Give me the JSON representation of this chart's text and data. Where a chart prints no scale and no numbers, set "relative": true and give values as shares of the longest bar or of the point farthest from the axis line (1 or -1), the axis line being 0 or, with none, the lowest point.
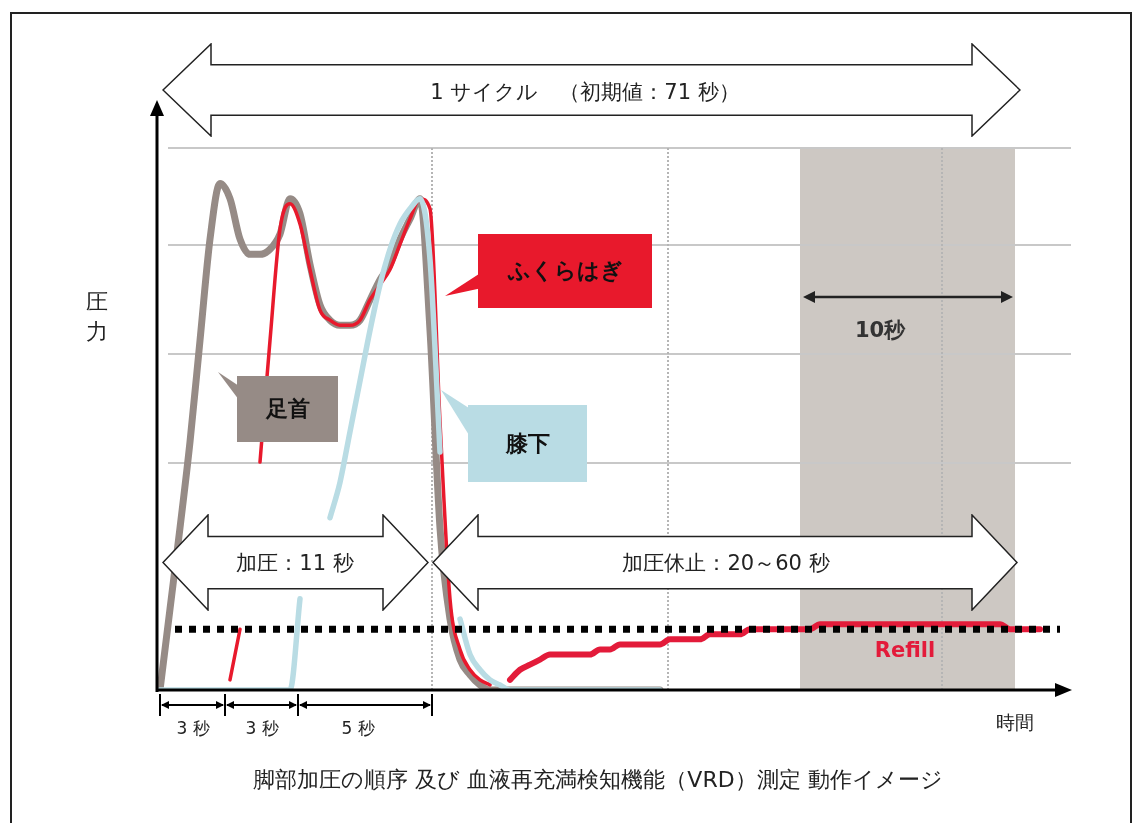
{
  "chart_data": {
    "type": "line",
    "relative": true,
    "marker": "none",
    "title": "脚部加圧の順序 及び 血液再充満検知機能（VRD）測定 動作イメージ",
    "xlabel": "時間",
    "ylabel": "圧力",
    "annotations": [
      "1 サイクル　（初期値：71 秒）",
      "加圧：11 秒",
      "加圧休止：20～60 秒",
      "10秒",
      "3 秒",
      "3 秒",
      "5 秒"
    ],
    "categories": [
      null,
      null,
      null,
      null,
      null,
      null,
      null,
      null,
      null,
      null,
      null,
      null,
      null,
      null,
      null,
      null,
      null,
      null,
      null,
      null,
      null,
      null,
      null,
      null,
      null,
      null,
      null,
      null,
      null,
      null,
      null,
      null,
      null,
      null,
      null,
      null,
      null,
      null,
      null,
      null,
      null,
      null,
      null,
      null,
      null,
      null,
      null,
      null,
      null,
      null,
      null,
      null,
      null,
      null,
      null,
      null,
      null,
      null,
      null,
      null,
      null,
      null,
      null,
      null,
      null,
      null,
      null,
      null,
      null,
      null,
      null,
      null,
      null,
      null,
      null,
      null,
      null,
      null,
      null,
      null,
      null,
      null,
      null,
      null,
      null,
      null,
      null,
      null,
      null,
      null,
      null,
      null
    ],
    "ref_lines": [
      {
        "axis": "y",
        "value": 0.12,
        "color": "#000000",
        "line_style": "dotted"
      }
    ],
    "series": [
      {
        "name": "足首",
        "color": "#968b86",
        "values": [
          0,
          0.16,
          0.32,
          0.49,
          0.69,
          0.89,
          1.0,
          0.97,
          0.89,
          0.86,
          0.86,
          0.87,
          0.9,
          0.97,
          0.94,
          0.84,
          0.76,
          0.73,
          0.72,
          0.72,
          0.73,
          0.77,
          0.81,
          0.84,
          0.89,
          0.93,
          0.97,
          0.71,
          0.32,
          0.14,
          0.06,
          0.03,
          0.01,
          0,
          0,
          0,
          0,
          0,
          0,
          0,
          0,
          0,
          0,
          0,
          0,
          0,
          0,
          0,
          0,
          0,
          0,
          null,
          null,
          null,
          null,
          null,
          null,
          null,
          null,
          null,
          null,
          null,
          null,
          null,
          null,
          null,
          null,
          null,
          null,
          null,
          null,
          null,
          null,
          null,
          null,
          null,
          null,
          null,
          null,
          null,
          null,
          null,
          null,
          null,
          null,
          null,
          null,
          null,
          null,
          null,
          null,
          null
        ]
      },
      {
        "name": "ふくらはぎ",
        "color": "#e8192c",
        "values": [
          null,
          null,
          null,
          null,
          null,
          null,
          null,
          0.02,
          0.12,
          null,
          0.45,
          0.69,
          0.91,
          0.96,
          0.92,
          0.83,
          0.75,
          0.73,
          0.72,
          0.72,
          0.73,
          0.77,
          0.8,
          0.83,
          0.88,
          0.93,
          0.97,
          0.95,
          0.53,
          0.18,
          0.08,
          0.04,
          0.02,
          0.01,
          null,
          null,
          null,
          null,
          null,
          null,
          null,
          null,
          null,
          null,
          null,
          null,
          null,
          null,
          null,
          null,
          null,
          null,
          null,
          null,
          null,
          null,
          null,
          null,
          null,
          null,
          null,
          null,
          null,
          null,
          null,
          null,
          null,
          null,
          null,
          null,
          null,
          null,
          null,
          null,
          null,
          null,
          null,
          null,
          null,
          null,
          null,
          null,
          null,
          null,
          null,
          null,
          null,
          null,
          null,
          null,
          null,
          null
        ]
      },
      {
        "name": "膝下",
        "color": "#b9dce4",
        "values": [
          0,
          0,
          0,
          0,
          0,
          0,
          0,
          0,
          0,
          0,
          0,
          0,
          0,
          0,
          0.18,
          null,
          null,
          0.34,
          0.41,
          0.51,
          0.61,
          0.71,
          0.8,
          0.87,
          0.92,
          0.95,
          0.97,
          0.85,
          0.47,
          null,
          0.14,
          0.07,
          0.04,
          0.02,
          0.01,
          0,
          0,
          0,
          0,
          0,
          0,
          0,
          0,
          0,
          0,
          0,
          0,
          0,
          0,
          0,
          0,
          null,
          null,
          null,
          null,
          null,
          null,
          null,
          null,
          null,
          null,
          null,
          null,
          null,
          null,
          null,
          null,
          null,
          null,
          null,
          null,
          null,
          null,
          null,
          null,
          null,
          null,
          null,
          null,
          null,
          null,
          null,
          null,
          null,
          null,
          null,
          null,
          null,
          null,
          null,
          null,
          null
        ]
      },
      {
        "name": "Refill",
        "color": "#e31b3a",
        "values": [
          null,
          null,
          null,
          null,
          null,
          null,
          null,
          null,
          null,
          null,
          null,
          null,
          null,
          null,
          null,
          null,
          null,
          null,
          null,
          null,
          null,
          null,
          null,
          null,
          null,
          null,
          null,
          null,
          null,
          null,
          null,
          null,
          null,
          null,
          null,
          0.02,
          0.04,
          0.05,
          0.06,
          0.07,
          0.07,
          0.07,
          0.07,
          0.07,
          0.08,
          0.08,
          0.09,
          0.09,
          0.09,
          0.09,
          0.09,
          0.1,
          0.1,
          0.1,
          0.1,
          0.11,
          0.11,
          0.11,
          0.11,
          0.12,
          0.12,
          0.12,
          0.12,
          0.12,
          0.12,
          0.12,
          0.13,
          0.13,
          0.13,
          0.13,
          0.13,
          0.13,
          0.13,
          0.13,
          0.13,
          0.13,
          0.13,
          0.13,
          0.13,
          0.13,
          0.13,
          0.13,
          0.13,
          0.13,
          0.13,
          0.12,
          0.12,
          0.12,
          0.12,
          null,
          null,
          null
        ]
      }
    ]
  }
}
